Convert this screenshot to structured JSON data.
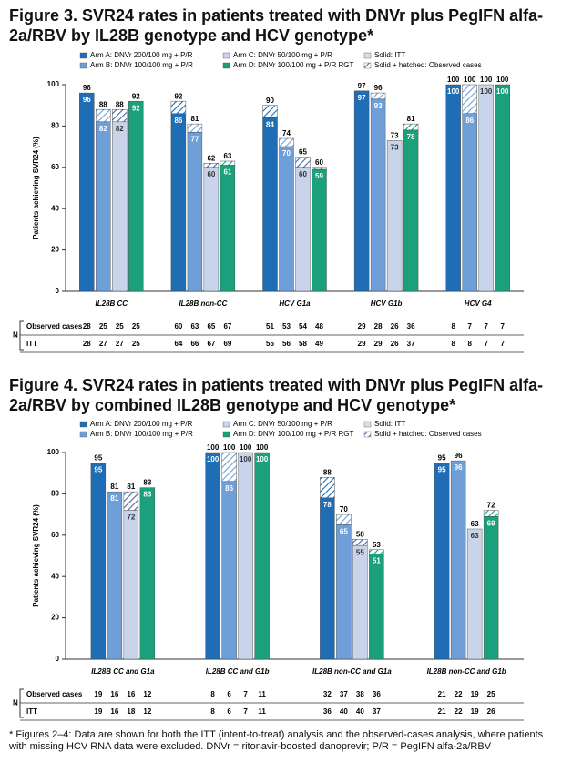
{
  "chart_data": [
    {
      "type": "bar",
      "title": "Figure 3. SVR24 rates in patients treated with DNVr plus PegIFN alfa-2a/RBV by IL28B genotype and HCV genotype*",
      "ylabel": "Patients achieving SVR24 (%)",
      "ylim": [
        0,
        100
      ],
      "yticks": [
        0,
        20,
        40,
        60,
        80,
        100
      ],
      "categories": [
        "IL28B CC",
        "IL28B non-CC",
        "HCV G1a",
        "HCV G1b",
        "HCV G4"
      ],
      "legend_notes": [
        "Solid: ITT",
        "Solid + hatched: Observed cases"
      ],
      "series": [
        {
          "name": "Arm A: DNVr 200/100 mg + P/R",
          "color": "#1f6db5",
          "values": [
            96,
            86,
            84,
            97,
            100
          ],
          "observed_values": [
            96,
            92,
            90,
            97,
            100
          ]
        },
        {
          "name": "Arm B: DNVr 100/100 mg + P/R",
          "color": "#6f9fd8",
          "values": [
            82,
            77,
            70,
            93,
            86
          ],
          "observed_values": [
            88,
            81,
            74,
            96,
            100
          ]
        },
        {
          "name": "Arm C: DNVr 50/100 mg + P/R",
          "color": "#c9d3ea",
          "values": [
            82,
            60,
            60,
            73,
            100
          ],
          "observed_values": [
            88,
            62,
            65,
            73,
            100
          ]
        },
        {
          "name": "Arm D: DNVr 100/100 mg + P/R RGT",
          "color": "#1aa07a",
          "values": [
            92,
            61,
            59,
            78,
            100
          ],
          "observed_values": [
            92,
            63,
            60,
            81,
            100
          ]
        }
      ],
      "table": {
        "axis_label": "N",
        "rows": [
          {
            "label": "Observed cases",
            "values": [
              [
                28,
                25,
                25,
                25
              ],
              [
                60,
                63,
                65,
                67
              ],
              [
                51,
                53,
                54,
                48
              ],
              [
                29,
                28,
                26,
                36
              ],
              [
                8,
                7,
                7,
                7
              ]
            ]
          },
          {
            "label": "ITT",
            "values": [
              [
                28,
                27,
                27,
                25
              ],
              [
                64,
                66,
                67,
                69
              ],
              [
                55,
                56,
                58,
                49
              ],
              [
                29,
                29,
                26,
                37
              ],
              [
                8,
                8,
                7,
                7
              ]
            ]
          }
        ]
      }
    },
    {
      "type": "bar",
      "title": "Figure 4. SVR24 rates in patients treated with DNVr plus PegIFN alfa-2a/RBV by combined IL28B genotype and HCV genotype*",
      "ylabel": "Patients achieving SVR24 (%)",
      "ylim": [
        0,
        100
      ],
      "yticks": [
        0,
        20,
        40,
        60,
        80,
        100
      ],
      "categories": [
        "IL28B CC and G1a",
        "IL28B CC and G1b",
        "IL28B non-CC and G1a",
        "IL28B non-CC and G1b"
      ],
      "legend_notes": [
        "Solid: ITT",
        "Solid + hatched: Observed cases"
      ],
      "series": [
        {
          "name": "Arm A: DNVr 200/100 mg + P/R",
          "color": "#1f6db5",
          "values": [
            95,
            100,
            78,
            95
          ],
          "observed_values": [
            95,
            100,
            88,
            95
          ]
        },
        {
          "name": "Arm B: DNVr 100/100 mg + P/R",
          "color": "#6f9fd8",
          "values": [
            81,
            86,
            65,
            96
          ],
          "observed_values": [
            81,
            100,
            70,
            96
          ]
        },
        {
          "name": "Arm C: DNVr 50/100 mg + P/R",
          "color": "#c9d3ea",
          "values": [
            72,
            100,
            55,
            63
          ],
          "observed_values": [
            81,
            100,
            58,
            63
          ]
        },
        {
          "name": "Arm D: DNVr 100/100 mg + P/R RGT",
          "color": "#1aa07a",
          "values": [
            83,
            100,
            51,
            69
          ],
          "observed_values": [
            83,
            100,
            53,
            72
          ]
        }
      ],
      "table": {
        "axis_label": "N",
        "rows": [
          {
            "label": "Observed cases",
            "values": [
              [
                19,
                16,
                16,
                12
              ],
              [
                8,
                6,
                7,
                11
              ],
              [
                32,
                37,
                38,
                36
              ],
              [
                21,
                22,
                19,
                25
              ]
            ]
          },
          {
            "label": "ITT",
            "values": [
              [
                19,
                16,
                18,
                12
              ],
              [
                8,
                6,
                7,
                11
              ],
              [
                36,
                40,
                40,
                37
              ],
              [
                21,
                22,
                19,
                26
              ]
            ]
          }
        ]
      }
    }
  ],
  "footnote": "* Figures 2–4: Data are shown for both the ITT (intent-to-treat) analysis and the observed-cases analysis, where patients with missing HCV RNA data were excluded. DNVr = ritonavir-boosted danoprevir; P/R = PegIFN alfa-2a/RBV"
}
